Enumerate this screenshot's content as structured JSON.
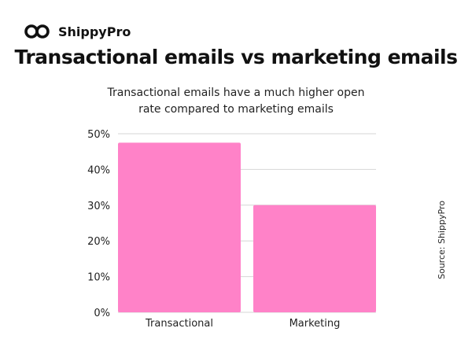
{
  "brand": {
    "name": "ShippyPro"
  },
  "source": "Source: ShippyPro",
  "chart_data": {
    "type": "bar",
    "title": "Transactional emails vs marketing emails",
    "subtitle_lines": [
      "Transactional emails have a much higher open",
      "rate compared to marketing emails"
    ],
    "categories": [
      "Transactional",
      "Marketing"
    ],
    "values": [
      47.5,
      30
    ],
    "unit": "%",
    "ylim": [
      0,
      50
    ],
    "yticks": [
      0,
      10,
      20,
      30,
      40,
      50
    ],
    "ytick_labels": [
      "0%",
      "10%",
      "20%",
      "30%",
      "40%",
      "50%"
    ],
    "xlabel": "",
    "ylabel": "",
    "grid": true,
    "bar_color": "#ff82c8",
    "grid_color": "#d6d6d6"
  }
}
